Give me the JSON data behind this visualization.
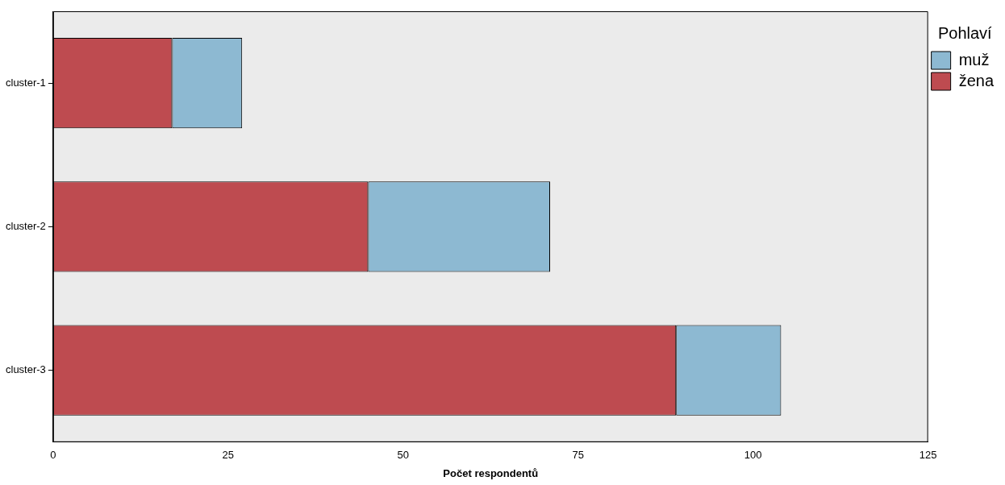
{
  "chart_data": {
    "type": "bar",
    "orientation": "horizontal",
    "stacked": true,
    "xlabel": "Počet respondentů",
    "legend_title": "Pohlaví",
    "legend": "top right",
    "grid": false,
    "categories": [
      "cluster-1",
      "cluster-2",
      "cluster-3"
    ],
    "series": [
      {
        "name": "žena",
        "color": "#be4b50",
        "values": [
          17,
          45,
          89
        ]
      },
      {
        "name": "muž",
        "color": "#8db9d2",
        "values": [
          10,
          26,
          15
        ]
      }
    ],
    "xlim": [
      0,
      125
    ],
    "xticks": [
      0,
      25,
      50,
      75,
      100,
      125
    ]
  }
}
